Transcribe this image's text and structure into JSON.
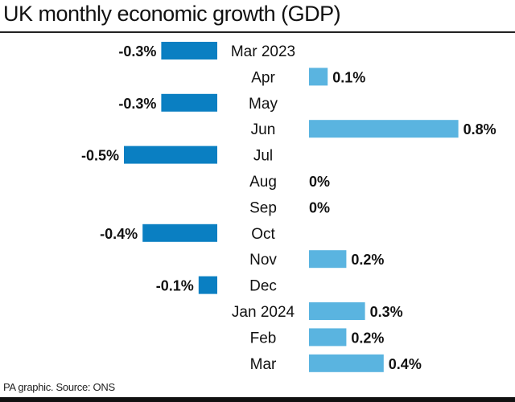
{
  "chart_data": {
    "type": "bar",
    "orientation": "horizontal-diverging",
    "title": "UK monthly economic growth (GDP)",
    "xlabel": "",
    "ylabel": "",
    "categories": [
      "Mar 2023",
      "Apr",
      "May",
      "Jun",
      "Jul",
      "Aug",
      "Sep",
      "Oct",
      "Nov",
      "Dec",
      "Jan 2024",
      "Feb",
      "Mar"
    ],
    "values": [
      -0.3,
      0.1,
      -0.3,
      0.8,
      -0.5,
      0,
      0,
      -0.4,
      0.2,
      -0.1,
      0.3,
      0.2,
      0.4
    ],
    "labels": [
      "-0.3%",
      "0.1%",
      "-0.3%",
      "0.8%",
      "-0.5%",
      "0%",
      "0%",
      "-0.4%",
      "0.2%",
      "-0.1%",
      "0.3%",
      "0.2%",
      "0.4%"
    ],
    "unit": "%",
    "xlim": [
      -0.5,
      0.8
    ],
    "grid": false,
    "legend": "none",
    "colors": {
      "negative": "#0a7fc2",
      "positive": "#5ab4e0"
    },
    "source": "PA graphic. Source: ONS"
  }
}
